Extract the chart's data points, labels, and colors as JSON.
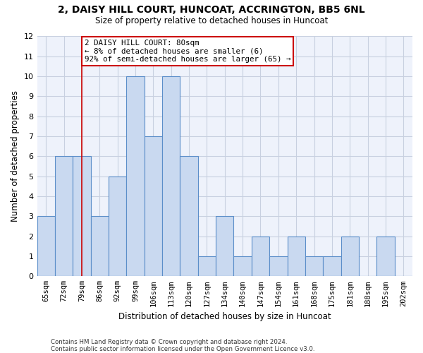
{
  "title1": "2, DAISY HILL COURT, HUNCOAT, ACCRINGTON, BB5 6NL",
  "title2": "Size of property relative to detached houses in Huncoat",
  "xlabel": "Distribution of detached houses by size in Huncoat",
  "ylabel": "Number of detached properties",
  "categories": [
    "65sqm",
    "72sqm",
    "79sqm",
    "86sqm",
    "92sqm",
    "99sqm",
    "106sqm",
    "113sqm",
    "120sqm",
    "127sqm",
    "134sqm",
    "140sqm",
    "147sqm",
    "154sqm",
    "161sqm",
    "168sqm",
    "175sqm",
    "181sqm",
    "188sqm",
    "195sqm",
    "202sqm"
  ],
  "values": [
    3,
    6,
    6,
    3,
    5,
    10,
    7,
    10,
    6,
    1,
    3,
    1,
    2,
    1,
    2,
    1,
    1,
    2,
    0,
    2,
    0
  ],
  "bar_color": "#c9d9f0",
  "bar_edge_color": "#5b8ec9",
  "grid_color": "#c8d0e0",
  "background_color": "#eef2fb",
  "annotation_text": "2 DAISY HILL COURT: 80sqm\n← 8% of detached houses are smaller (6)\n92% of semi-detached houses are larger (65) →",
  "vline_x_index": 2,
  "vline_color": "#cc0000",
  "annotation_box_color": "#ffffff",
  "annotation_box_edge": "#cc0000",
  "ylim": [
    0,
    12
  ],
  "yticks": [
    0,
    1,
    2,
    3,
    4,
    5,
    6,
    7,
    8,
    9,
    10,
    11,
    12
  ],
  "footnote1": "Contains HM Land Registry data © Crown copyright and database right 2024.",
  "footnote2": "Contains public sector information licensed under the Open Government Licence v3.0."
}
